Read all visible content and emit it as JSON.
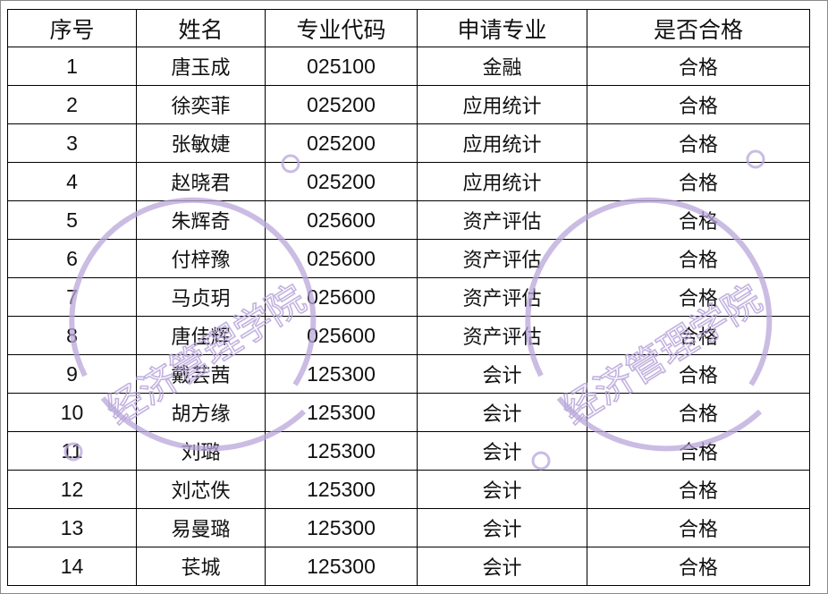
{
  "table": {
    "headers": [
      "序号",
      "姓名",
      "专业代码",
      "申请专业",
      "是否合格"
    ],
    "rows": [
      [
        "1",
        "唐玉成",
        "025100",
        "金融",
        "合格"
      ],
      [
        "2",
        "徐奕菲",
        "025200",
        "应用统计",
        "合格"
      ],
      [
        "3",
        "张敏婕",
        "025200",
        "应用统计",
        "合格"
      ],
      [
        "4",
        "赵晓君",
        "025200",
        "应用统计",
        "合格"
      ],
      [
        "5",
        "朱辉奇",
        "025600",
        "资产评估",
        "合格"
      ],
      [
        "6",
        "付梓豫",
        "025600",
        "资产评估",
        "合格"
      ],
      [
        "7",
        "马贞玥",
        "025600",
        "资产评估",
        "合格"
      ],
      [
        "8",
        "唐佳辉",
        "025600",
        "资产评估",
        "合格"
      ],
      [
        "9",
        "戴芸茜",
        "125300",
        "会计",
        "合格"
      ],
      [
        "10",
        "胡方缘",
        "125300",
        "会计",
        "合格"
      ],
      [
        "11",
        "刘璐",
        "125300",
        "会计",
        "合格"
      ],
      [
        "12",
        "刘芯佚",
        "125300",
        "会计",
        "合格"
      ],
      [
        "13",
        "易曼璐",
        "125300",
        "会计",
        "合格"
      ],
      [
        "14",
        "苌城",
        "125300",
        "会计",
        "合格"
      ]
    ]
  },
  "watermark": {
    "text": "经济管理学院",
    "color": "#b9a6da"
  }
}
